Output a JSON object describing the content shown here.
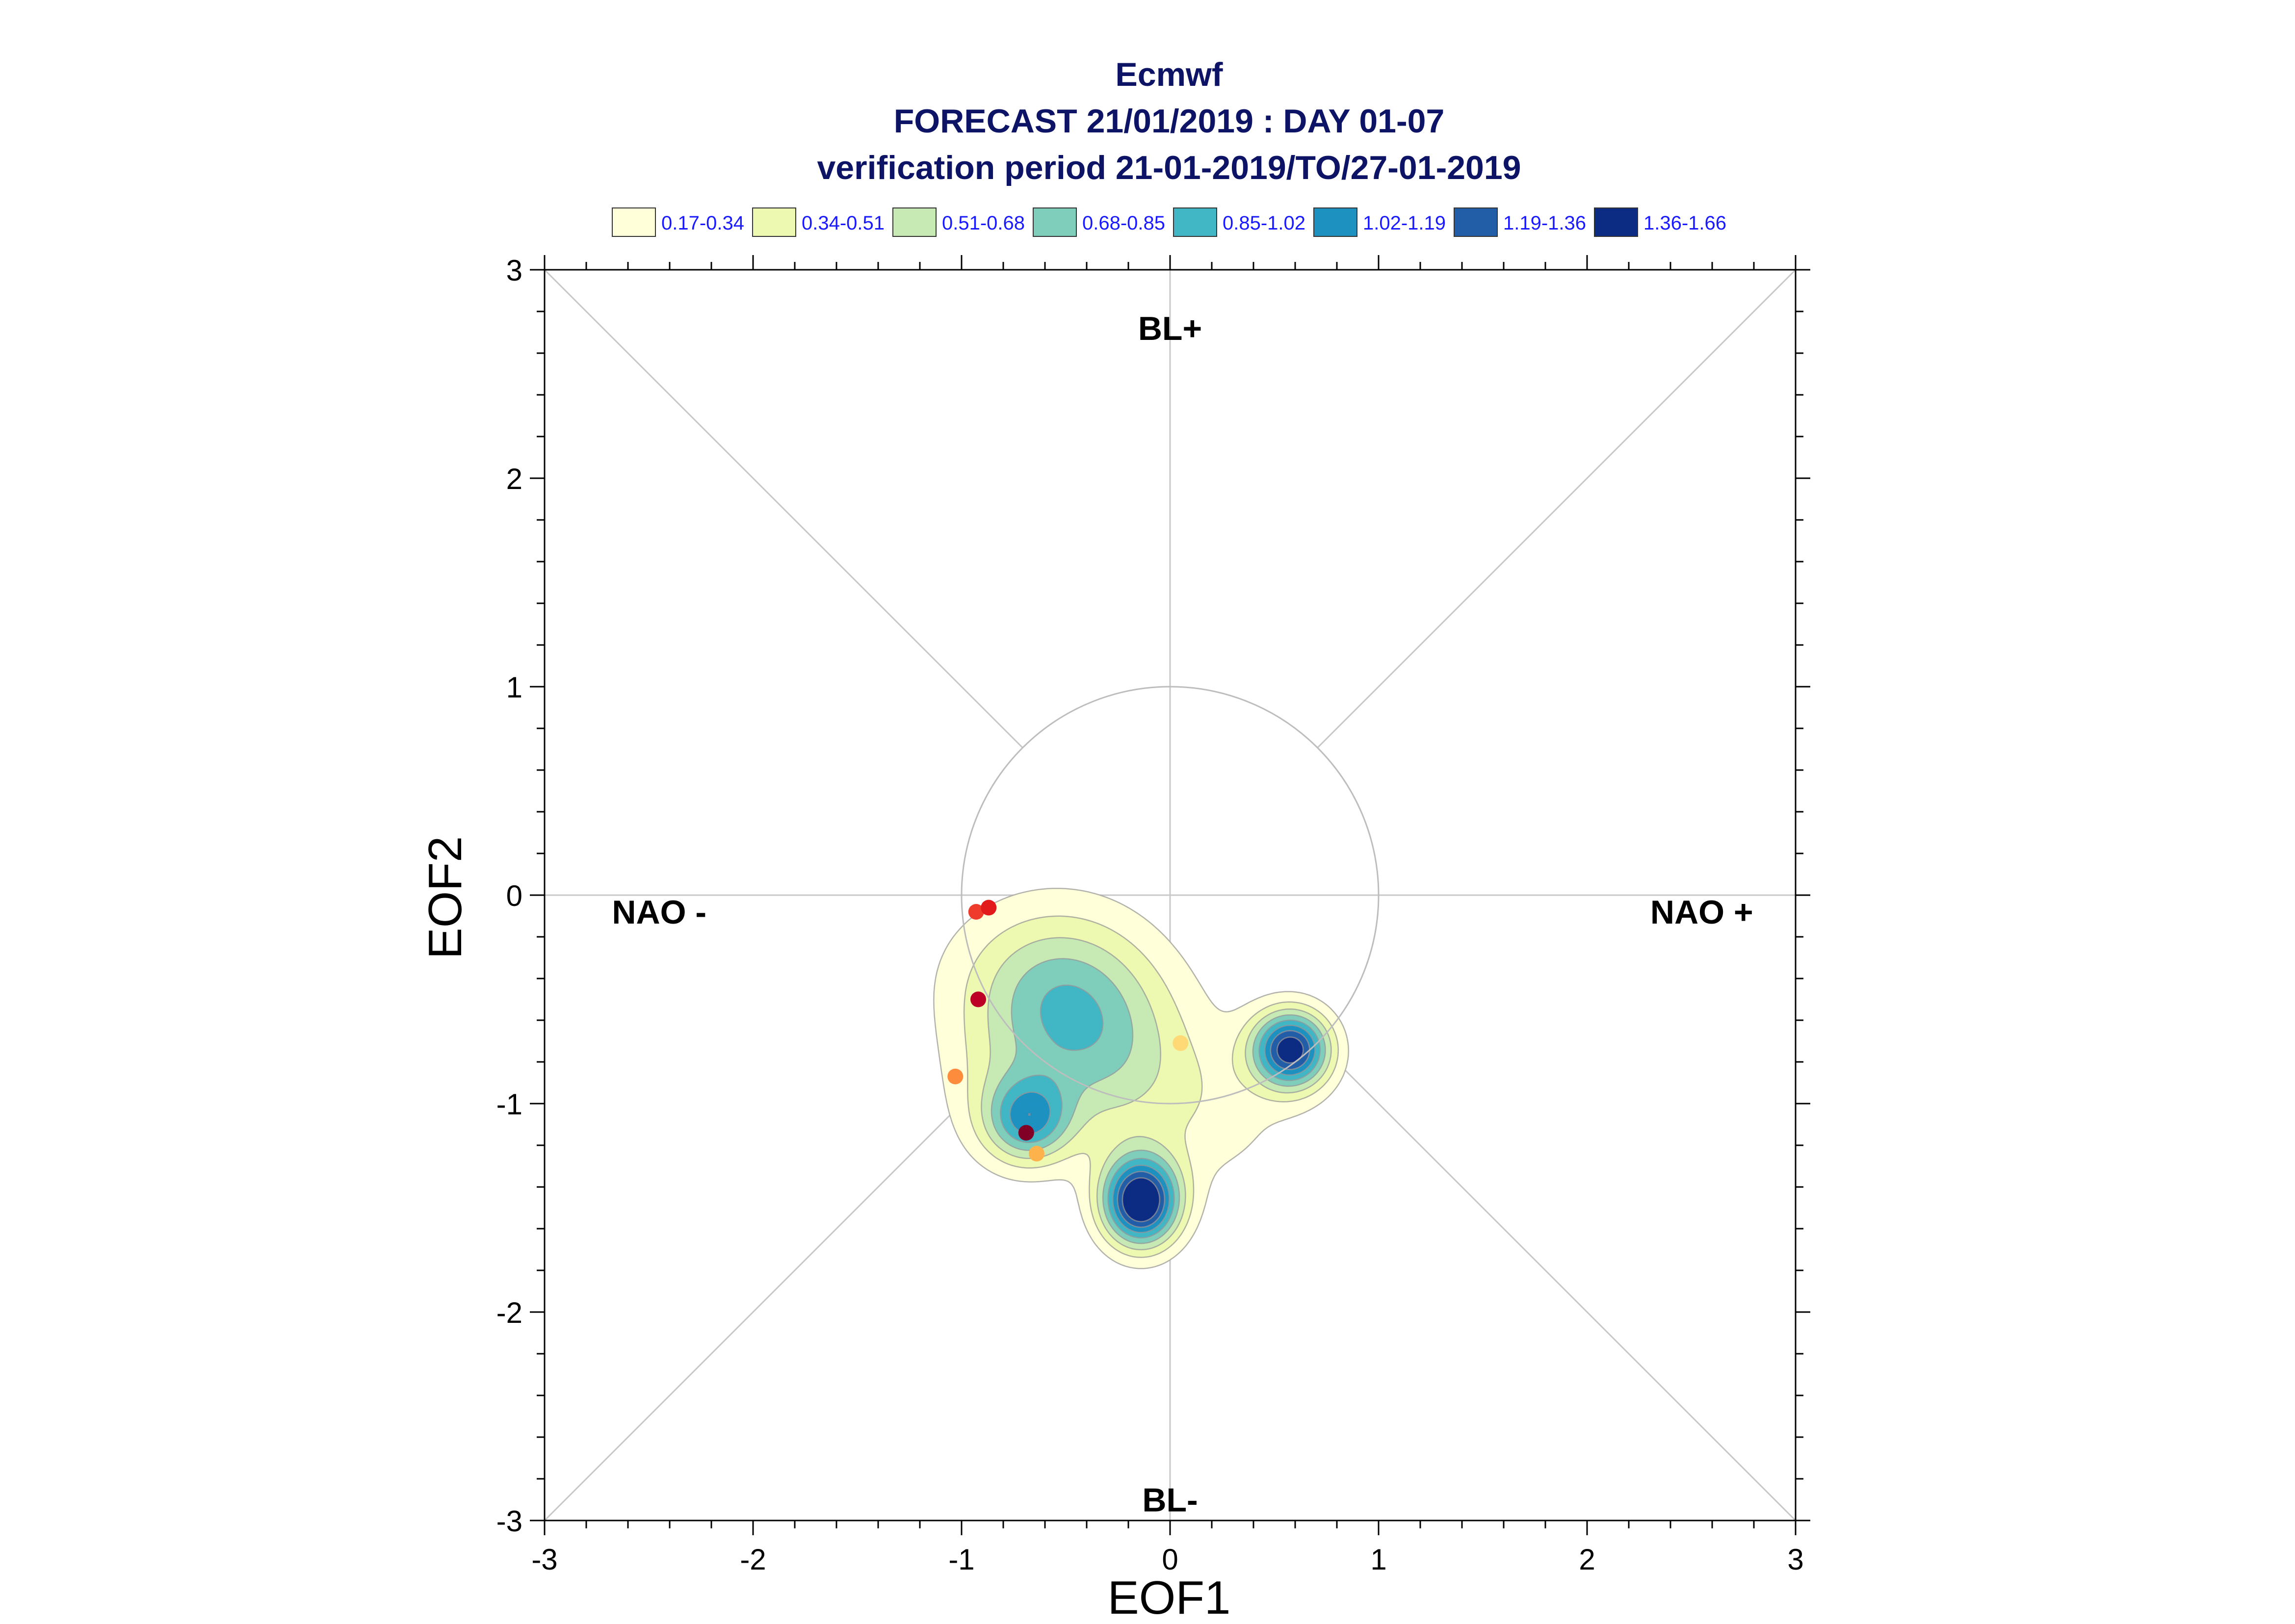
{
  "chart_data": {
    "type": "scatter",
    "title_lines": [
      "Ecmwf",
      "FORECAST 21/01/2019 : DAY 01-07",
      "verification period 21-01-2019/TO/27-01-2019"
    ],
    "xlabel": "EOF1",
    "ylabel": "EOF2",
    "xlim": [
      -3,
      3
    ],
    "ylim": [
      -3,
      3
    ],
    "x_ticks": [
      -3,
      -2,
      -1,
      0,
      1,
      2,
      3
    ],
    "y_ticks": [
      -3,
      -2,
      -1,
      0,
      1,
      2,
      3
    ],
    "x_tick_labels": [
      "-3",
      "-2",
      "-1",
      "0",
      "1",
      "2",
      "3"
    ],
    "y_tick_labels": [
      "-3",
      "-2",
      "-1",
      "0",
      "1",
      "2",
      "3"
    ],
    "grid": false,
    "reference_circle_radius": 1,
    "regime_labels": [
      {
        "text": "BL+",
        "x": 0,
        "y": 2.72
      },
      {
        "text": "BL-",
        "x": 0,
        "y": -2.9
      },
      {
        "text": "NAO -",
        "x": -2.45,
        "y": -0.08
      },
      {
        "text": "NAO +",
        "x": 2.55,
        "y": -0.08
      }
    ],
    "legend": {
      "placement": "top",
      "entries": [
        {
          "label": "0.17-0.34",
          "color": "#ffffd9"
        },
        {
          "label": "0.34-0.51",
          "color": "#edf8b1"
        },
        {
          "label": "0.51-0.68",
          "color": "#c7e9b4"
        },
        {
          "label": "0.68-0.85",
          "color": "#7fcdbb"
        },
        {
          "label": "0.85-1.02",
          "color": "#41b6c4"
        },
        {
          "label": "1.02-1.19",
          "color": "#1d91c0"
        },
        {
          "label": "1.19-1.36",
          "color": "#225ea8"
        },
        {
          "label": "1.36-1.66",
          "color": "#0c2c84"
        }
      ]
    },
    "density_levels": [
      0.17,
      0.34,
      0.51,
      0.68,
      0.85,
      1.02,
      1.19,
      1.36,
      1.66
    ],
    "density_kernels": [
      {
        "x": -0.62,
        "y": -0.42,
        "sx": 0.34,
        "sy": 0.28,
        "w": 0.42
      },
      {
        "x": -0.48,
        "y": -0.66,
        "sx": 0.28,
        "sy": 0.34,
        "w": 0.38
      },
      {
        "x": -0.25,
        "y": -0.72,
        "sx": 0.32,
        "sy": 0.32,
        "w": 0.3
      },
      {
        "x": -0.68,
        "y": -1.08,
        "sx": 0.14,
        "sy": 0.14,
        "w": 0.85
      },
      {
        "x": -0.14,
        "y": -1.47,
        "sx": 0.13,
        "sy": 0.15,
        "w": 1.62
      },
      {
        "x": 0.58,
        "y": -0.74,
        "sx": 0.13,
        "sy": 0.13,
        "w": 1.45
      },
      {
        "x": 0.15,
        "y": -1.05,
        "sx": 0.35,
        "sy": 0.28,
        "w": 0.22
      },
      {
        "x": -0.88,
        "y": -0.95,
        "sx": 0.18,
        "sy": 0.25,
        "w": 0.18
      }
    ],
    "points": [
      {
        "x": -0.93,
        "y": -0.08,
        "color": "#ef3b2c"
      },
      {
        "x": -0.87,
        "y": -0.06,
        "color": "#e31a1c"
      },
      {
        "x": -0.92,
        "y": -0.5,
        "color": "#bd0026"
      },
      {
        "x": -1.03,
        "y": -0.87,
        "color": "#fd8d3c"
      },
      {
        "x": -0.69,
        "y": -1.14,
        "color": "#800026"
      },
      {
        "x": -0.64,
        "y": -1.24,
        "color": "#feb24c"
      },
      {
        "x": 0.05,
        "y": -0.71,
        "color": "#fed976"
      }
    ]
  }
}
